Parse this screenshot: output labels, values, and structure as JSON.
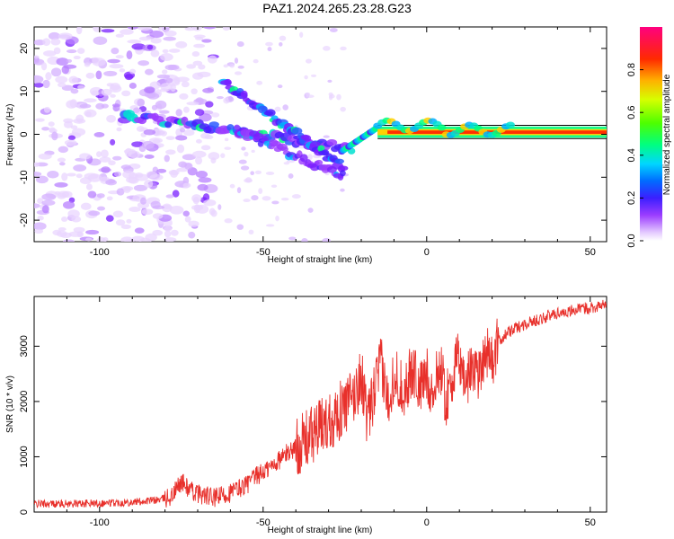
{
  "title": "PAZ1.2024.265.23.28.G23",
  "chart_data": [
    {
      "type": "heatmap",
      "xlabel": "Height of straight line (km)",
      "ylabel": "Frequency (Hz)",
      "xlim": [
        -120,
        55
      ],
      "ylim": [
        -25,
        25
      ],
      "xticks": [
        -100,
        -50,
        0,
        50
      ],
      "yticks": [
        -20,
        -10,
        0,
        10,
        20
      ],
      "colorbar": {
        "label": "Normalized spectral amplitude",
        "range": [
          0.0,
          1.0
        ],
        "ticks": [
          0.0,
          0.2,
          0.4,
          0.6,
          0.8
        ]
      },
      "grid": false
    },
    {
      "type": "line",
      "xlabel": "Height of straight line (km)",
      "ylabel": "SNR (10 * v/v)",
      "xlim": [
        -120,
        55
      ],
      "ylim": [
        0,
        3900
      ],
      "xticks": [
        -100,
        -50,
        0,
        50
      ],
      "yticks": [
        0,
        1000,
        2000,
        3000
      ],
      "series_color": "#e8302b",
      "series": [
        {
          "x": [
            -120,
            -110,
            -100,
            -90,
            -82,
            -78,
            -75,
            -72,
            -68,
            -65,
            -60,
            -55,
            -52,
            -48,
            -45,
            -42,
            -38,
            -35,
            -32,
            -29,
            -26,
            -22,
            -20,
            -18,
            -16,
            -14,
            -12,
            -10,
            -7,
            -4,
            -2,
            0,
            2,
            4,
            6,
            8,
            10,
            12,
            14,
            16,
            18,
            20,
            22,
            25,
            28,
            30,
            35,
            40,
            45,
            50,
            55
          ],
          "y": [
            150,
            150,
            160,
            180,
            220,
            280,
            550,
            380,
            300,
            250,
            350,
            500,
            650,
            800,
            950,
            1100,
            1250,
            1400,
            1550,
            1700,
            1850,
            2100,
            2500,
            1600,
            2200,
            2700,
            2000,
            2500,
            2200,
            2600,
            2200,
            2500,
            2100,
            2700,
            2000,
            2500,
            2800,
            2300,
            2700,
            2500,
            3000,
            2700,
            3100,
            3250,
            3350,
            3400,
            3500,
            3600,
            3650,
            3700,
            3750
          ]
        }
      ],
      "grid": false
    }
  ]
}
